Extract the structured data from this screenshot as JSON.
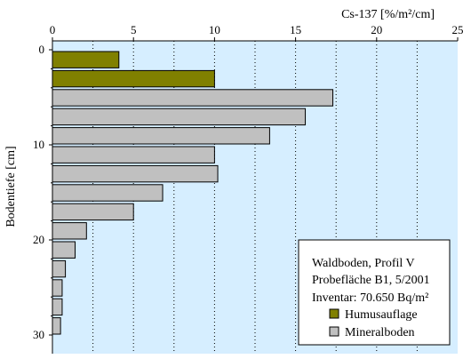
{
  "chart_data": {
    "type": "bar",
    "orientation": "horizontal",
    "xlabel": "Cs-137 [%/m²/cm]",
    "ylabel": "Bodentiefe [cm]",
    "xlim": [
      0,
      25
    ],
    "ylim": [
      0,
      32
    ],
    "xticks": [
      "0",
      "5",
      "10",
      "15",
      "20",
      "25"
    ],
    "yticks": [
      "0",
      "10",
      "20",
      "30"
    ],
    "x_axis_position": "top",
    "grid": "vertical dotted",
    "legend_position": "bottom-right",
    "legend_text": {
      "line1": "Waldboden, Profil V",
      "line2": "Probefläche B1, 5/2001",
      "line3": "Inventar: 70.650 Bq/m²"
    },
    "series": [
      {
        "name": "Humusauflage",
        "color": "#808000",
        "bars": [
          {
            "depth_top": 0,
            "depth_bottom": 2,
            "value": 4.1
          },
          {
            "depth_top": 2,
            "depth_bottom": 4,
            "value": 10.0
          }
        ]
      },
      {
        "name": "Mineralboden",
        "color": "#c0c0c0",
        "bars": [
          {
            "depth_top": 4,
            "depth_bottom": 6,
            "value": 17.3
          },
          {
            "depth_top": 6,
            "depth_bottom": 8,
            "value": 15.6
          },
          {
            "depth_top": 8,
            "depth_bottom": 10,
            "value": 13.4
          },
          {
            "depth_top": 10,
            "depth_bottom": 12,
            "value": 10.0
          },
          {
            "depth_top": 12,
            "depth_bottom": 14,
            "value": 10.2
          },
          {
            "depth_top": 14,
            "depth_bottom": 16,
            "value": 6.8
          },
          {
            "depth_top": 16,
            "depth_bottom": 18,
            "value": 5.0
          },
          {
            "depth_top": 18,
            "depth_bottom": 20,
            "value": 2.1
          },
          {
            "depth_top": 20,
            "depth_bottom": 22,
            "value": 1.4
          },
          {
            "depth_top": 22,
            "depth_bottom": 24,
            "value": 0.8
          },
          {
            "depth_top": 24,
            "depth_bottom": 26,
            "value": 0.6
          },
          {
            "depth_top": 26,
            "depth_bottom": 28,
            "value": 0.6
          },
          {
            "depth_top": 28,
            "depth_bottom": 30,
            "value": 0.5
          }
        ]
      }
    ],
    "plot_background": "#d6eeff"
  }
}
